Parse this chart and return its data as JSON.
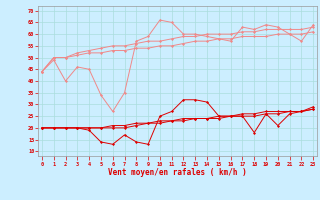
{
  "x": [
    0,
    1,
    2,
    3,
    4,
    5,
    6,
    7,
    8,
    9,
    10,
    11,
    12,
    13,
    14,
    15,
    16,
    17,
    18,
    19,
    20,
    21,
    22,
    23
  ],
  "line1": [
    44,
    49,
    40,
    46,
    45,
    34,
    27,
    35,
    57,
    59,
    66,
    65,
    60,
    60,
    59,
    58,
    57,
    63,
    62,
    64,
    63,
    60,
    57,
    64
  ],
  "line2": [
    44,
    50,
    50,
    52,
    53,
    54,
    55,
    55,
    56,
    57,
    57,
    58,
    59,
    59,
    60,
    60,
    60,
    61,
    61,
    62,
    62,
    62,
    62,
    63
  ],
  "line3": [
    44,
    50,
    50,
    51,
    52,
    52,
    53,
    53,
    54,
    54,
    55,
    55,
    56,
    57,
    57,
    58,
    58,
    59,
    59,
    59,
    60,
    60,
    60,
    61
  ],
  "line4": [
    20,
    20,
    20,
    20,
    19,
    14,
    13,
    17,
    14,
    13,
    25,
    27,
    32,
    32,
    31,
    25,
    25,
    25,
    18,
    26,
    21,
    26,
    27,
    29
  ],
  "line5": [
    20,
    20,
    20,
    20,
    20,
    20,
    20,
    20,
    21,
    22,
    22,
    23,
    23,
    24,
    24,
    24,
    25,
    25,
    25,
    26,
    26,
    27,
    27,
    28
  ],
  "line6": [
    20,
    20,
    20,
    20,
    20,
    20,
    21,
    21,
    22,
    22,
    23,
    23,
    24,
    24,
    24,
    25,
    25,
    26,
    26,
    27,
    27,
    27,
    27,
    28
  ],
  "bg_color": "#cceeff",
  "grid_color": "#aadddd",
  "light_pink": "#f08888",
  "dark_red": "#dd0000",
  "xlabel": "Vent moyen/en rafales ( km/h )",
  "ylabel_ticks": [
    10,
    15,
    20,
    25,
    30,
    35,
    40,
    45,
    50,
    55,
    60,
    65,
    70
  ],
  "ymin": 8,
  "ymax": 72
}
